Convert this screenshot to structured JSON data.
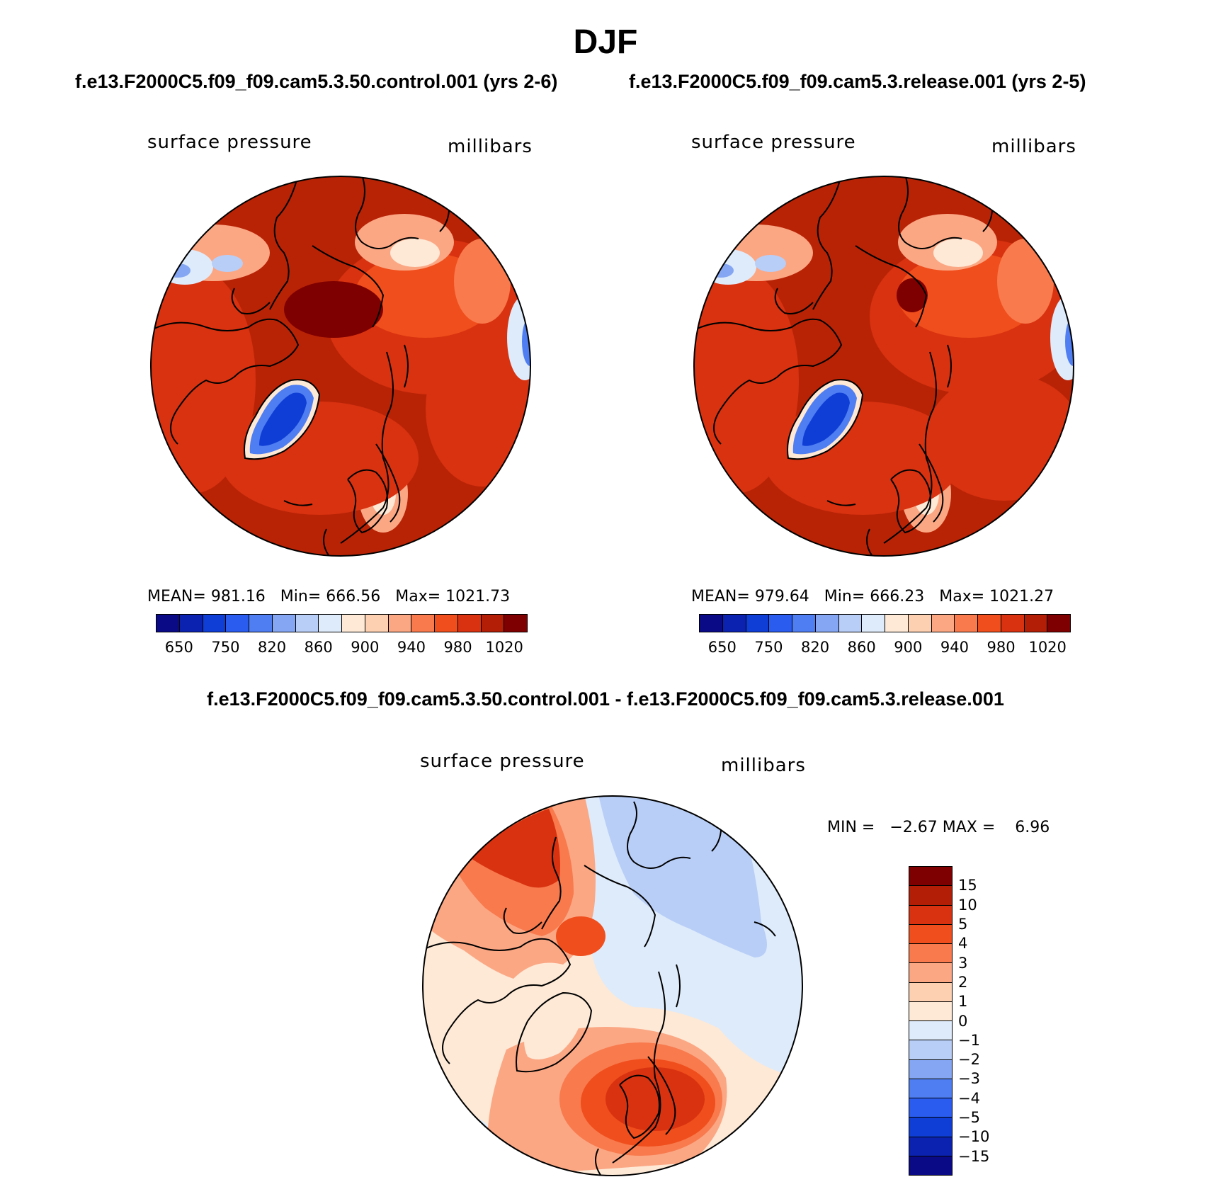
{
  "chart_data": [
    {
      "type": "heatmap",
      "projection": "north-polar-stereographic",
      "title": "DJF",
      "case": "f.e13.F2000C5.f09_f09.cam5.3.50.control.001 (yrs 2-6)",
      "variable": "surface pressure",
      "units": "millibars",
      "mean": "981.16",
      "min": "666.56",
      "max": "1021.73",
      "levels": [
        "650",
        "750",
        "820",
        "860",
        "900",
        "940",
        "980",
        "1020"
      ],
      "colors": [
        "#0a0a86",
        "#0b22b0",
        "#0f3ed6",
        "#2a5cf0",
        "#4f7ef2",
        "#85a6f2",
        "#b8cef7",
        "#deebfb",
        "#fde9d6",
        "#fdd0b2",
        "#fba784",
        "#f87a4d",
        "#f04e1c",
        "#d83210",
        "#b21f06",
        "#7f0000"
      ]
    },
    {
      "type": "heatmap",
      "projection": "north-polar-stereographic",
      "title": "DJF",
      "case": "f.e13.F2000C5.f09_f09.cam5.3.release.001 (yrs 2-5)",
      "variable": "surface pressure",
      "units": "millibars",
      "mean": "979.64",
      "min": "666.23",
      "max": "1021.27",
      "levels": [
        "650",
        "750",
        "820",
        "860",
        "900",
        "940",
        "980",
        "1020"
      ],
      "colors": [
        "#0a0a86",
        "#0b22b0",
        "#0f3ed6",
        "#2a5cf0",
        "#4f7ef2",
        "#85a6f2",
        "#b8cef7",
        "#deebfb",
        "#fde9d6",
        "#fdd0b2",
        "#fba784",
        "#f87a4d",
        "#f04e1c",
        "#d83210",
        "#b21f06",
        "#7f0000"
      ]
    },
    {
      "type": "heatmap",
      "projection": "north-polar-stereographic",
      "title": "f.e13.F2000C5.f09_f09.cam5.3.50.control.001 - f.e13.F2000C5.f09_f09.cam5.3.release.001",
      "variable": "surface pressure",
      "units": "millibars",
      "min_label": "MIN =",
      "min": "−2.67",
      "max_label": "MAX =",
      "max": "6.96",
      "levels": [
        "15",
        "10",
        "5",
        "4",
        "3",
        "2",
        "1",
        "0",
        "−1",
        "−2",
        "−3",
        "−4",
        "−5",
        "−10",
        "−15"
      ],
      "colors": [
        "#7f0000",
        "#b21f06",
        "#d83210",
        "#f04e1c",
        "#f87a4d",
        "#fba784",
        "#fdd0b2",
        "#fde9d6",
        "#deebfb",
        "#b8cef7",
        "#85a6f2",
        "#4f7ef2",
        "#2a5cf0",
        "#0f3ed6",
        "#0b22b0",
        "#0a0a86"
      ]
    }
  ],
  "page": {
    "title": "DJF",
    "case1": "f.e13.F2000C5.f09_f09.cam5.3.50.control.001 (yrs 2-6)",
    "case2": "f.e13.F2000C5.f09_f09.cam5.3.release.001 (yrs 2-5)",
    "diff_title": "f.e13.F2000C5.f09_f09.cam5.3.50.control.001 - f.e13.F2000C5.f09_f09.cam5.3.release.001"
  }
}
